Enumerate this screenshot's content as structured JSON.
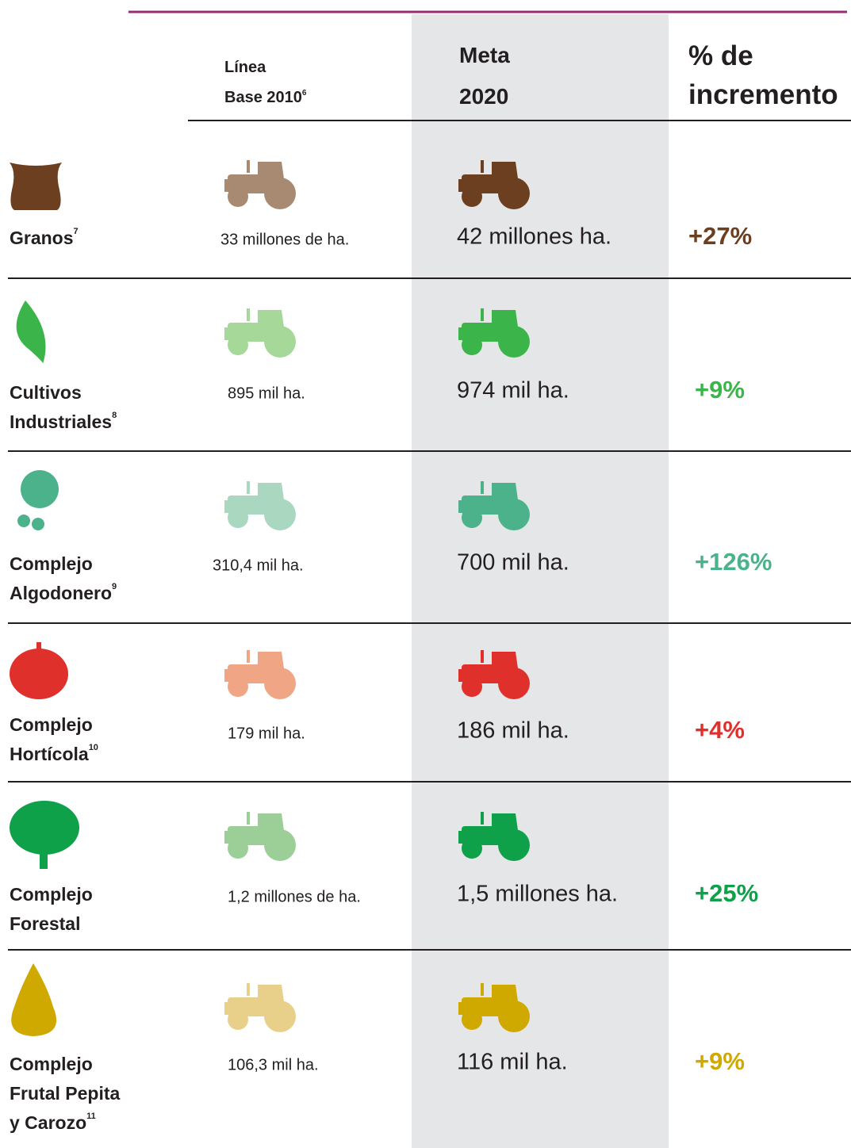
{
  "header": {
    "base_line": [
      "Línea",
      "Base 2010"
    ],
    "base_note": "6",
    "goal": [
      "Meta",
      "2020"
    ],
    "increase": [
      "% de",
      "incremento"
    ]
  },
  "rows": [
    {
      "name": [
        "Granos"
      ],
      "note": "7",
      "base": "33 millones de ha.",
      "goal": "42 millones ha.",
      "increase": "+27%",
      "color": "#6b3f1f",
      "light_color": "#a88a72"
    },
    {
      "name": [
        "Cultivos",
        "Industriales"
      ],
      "note": "8",
      "base": "895 mil ha.",
      "goal": "974 mil ha.",
      "increase": "+9%",
      "color": "#3bb54a",
      "light_color": "#a6d89a"
    },
    {
      "name": [
        "Complejo",
        "Algodonero"
      ],
      "note": "9",
      "base": "310,4 mil ha.",
      "goal": "700 mil ha.",
      "increase": "+126%",
      "color": "#4cb28c",
      "light_color": "#a9d7c0"
    },
    {
      "name": [
        "Complejo",
        "Hortícola"
      ],
      "note": "10",
      "base": "179 mil ha.",
      "goal": "186 mil ha.",
      "increase": "+4%",
      "color": "#e0302c",
      "light_color": "#f0a585"
    },
    {
      "name": [
        "Complejo",
        "Forestal"
      ],
      "note": "",
      "base": "1,2 millones de ha.",
      "goal": "1,5 millones ha.",
      "increase": "+25%",
      "color": "#0fa04a",
      "light_color": "#9ccf98"
    },
    {
      "name": [
        "Complejo",
        "Frutal Pepita",
        "y Carozo"
      ],
      "note": "11",
      "base": "106,3 mil ha.",
      "goal": "116 mil ha.",
      "increase": "+9%",
      "color": "#cfa800",
      "light_color": "#e9d08a"
    }
  ]
}
